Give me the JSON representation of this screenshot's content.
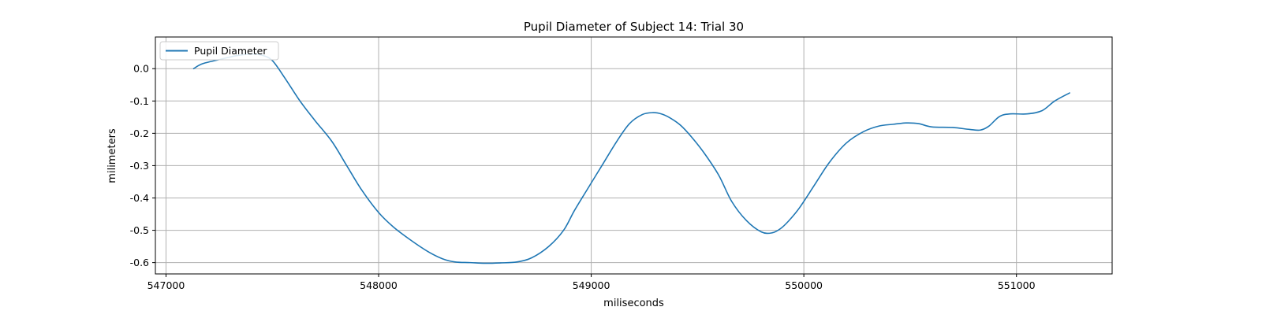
{
  "chart_data": {
    "type": "line",
    "title": "Pupil Diameter of Subject 14: Trial 30",
    "xlabel": "miliseconds",
    "ylabel": "milimeters",
    "xlim": [
      546950,
      551450
    ],
    "ylim": [
      -0.635,
      0.098
    ],
    "x_ticks": [
      547000,
      548000,
      549000,
      550000,
      551000
    ],
    "y_ticks": [
      0.0,
      -0.1,
      -0.2,
      -0.3,
      -0.4,
      -0.5,
      -0.6
    ],
    "grid": true,
    "legend": {
      "placement": "upper-left",
      "entries": [
        "Pupil Diameter"
      ]
    },
    "colors": {
      "series": "#1f77b4",
      "grid": "#b0b0b0",
      "axes": "#000000"
    },
    "series": [
      {
        "name": "Pupil Diameter",
        "x": [
          547130,
          547170,
          547250,
          547330,
          547400,
          547450,
          547500,
          547560,
          547630,
          547700,
          547780,
          547850,
          547920,
          548000,
          548070,
          548150,
          548230,
          548300,
          548360,
          548430,
          548500,
          548570,
          548650,
          548720,
          548800,
          548870,
          548920,
          548980,
          549050,
          549120,
          549180,
          549240,
          549290,
          549330,
          549370,
          549420,
          549470,
          549530,
          549600,
          549660,
          549730,
          549800,
          549850,
          549890,
          549930,
          549980,
          550050,
          550120,
          550200,
          550280,
          550350,
          550420,
          550480,
          550540,
          550600,
          550700,
          550780,
          550830,
          550870,
          550920,
          550970,
          551050,
          551120,
          551180,
          551250
        ],
        "y": [
          0.0,
          0.015,
          0.028,
          0.04,
          0.045,
          0.042,
          0.025,
          -0.03,
          -0.1,
          -0.16,
          -0.225,
          -0.3,
          -0.375,
          -0.445,
          -0.49,
          -0.53,
          -0.565,
          -0.588,
          -0.598,
          -0.6,
          -0.602,
          -0.601,
          -0.598,
          -0.585,
          -0.55,
          -0.5,
          -0.44,
          -0.375,
          -0.3,
          -0.225,
          -0.17,
          -0.142,
          -0.136,
          -0.14,
          -0.152,
          -0.175,
          -0.21,
          -0.26,
          -0.33,
          -0.41,
          -0.47,
          -0.505,
          -0.508,
          -0.495,
          -0.47,
          -0.43,
          -0.36,
          -0.29,
          -0.23,
          -0.195,
          -0.178,
          -0.172,
          -0.168,
          -0.17,
          -0.18,
          -0.182,
          -0.188,
          -0.19,
          -0.178,
          -0.148,
          -0.14,
          -0.14,
          -0.13,
          -0.1,
          -0.075
        ]
      }
    ]
  }
}
